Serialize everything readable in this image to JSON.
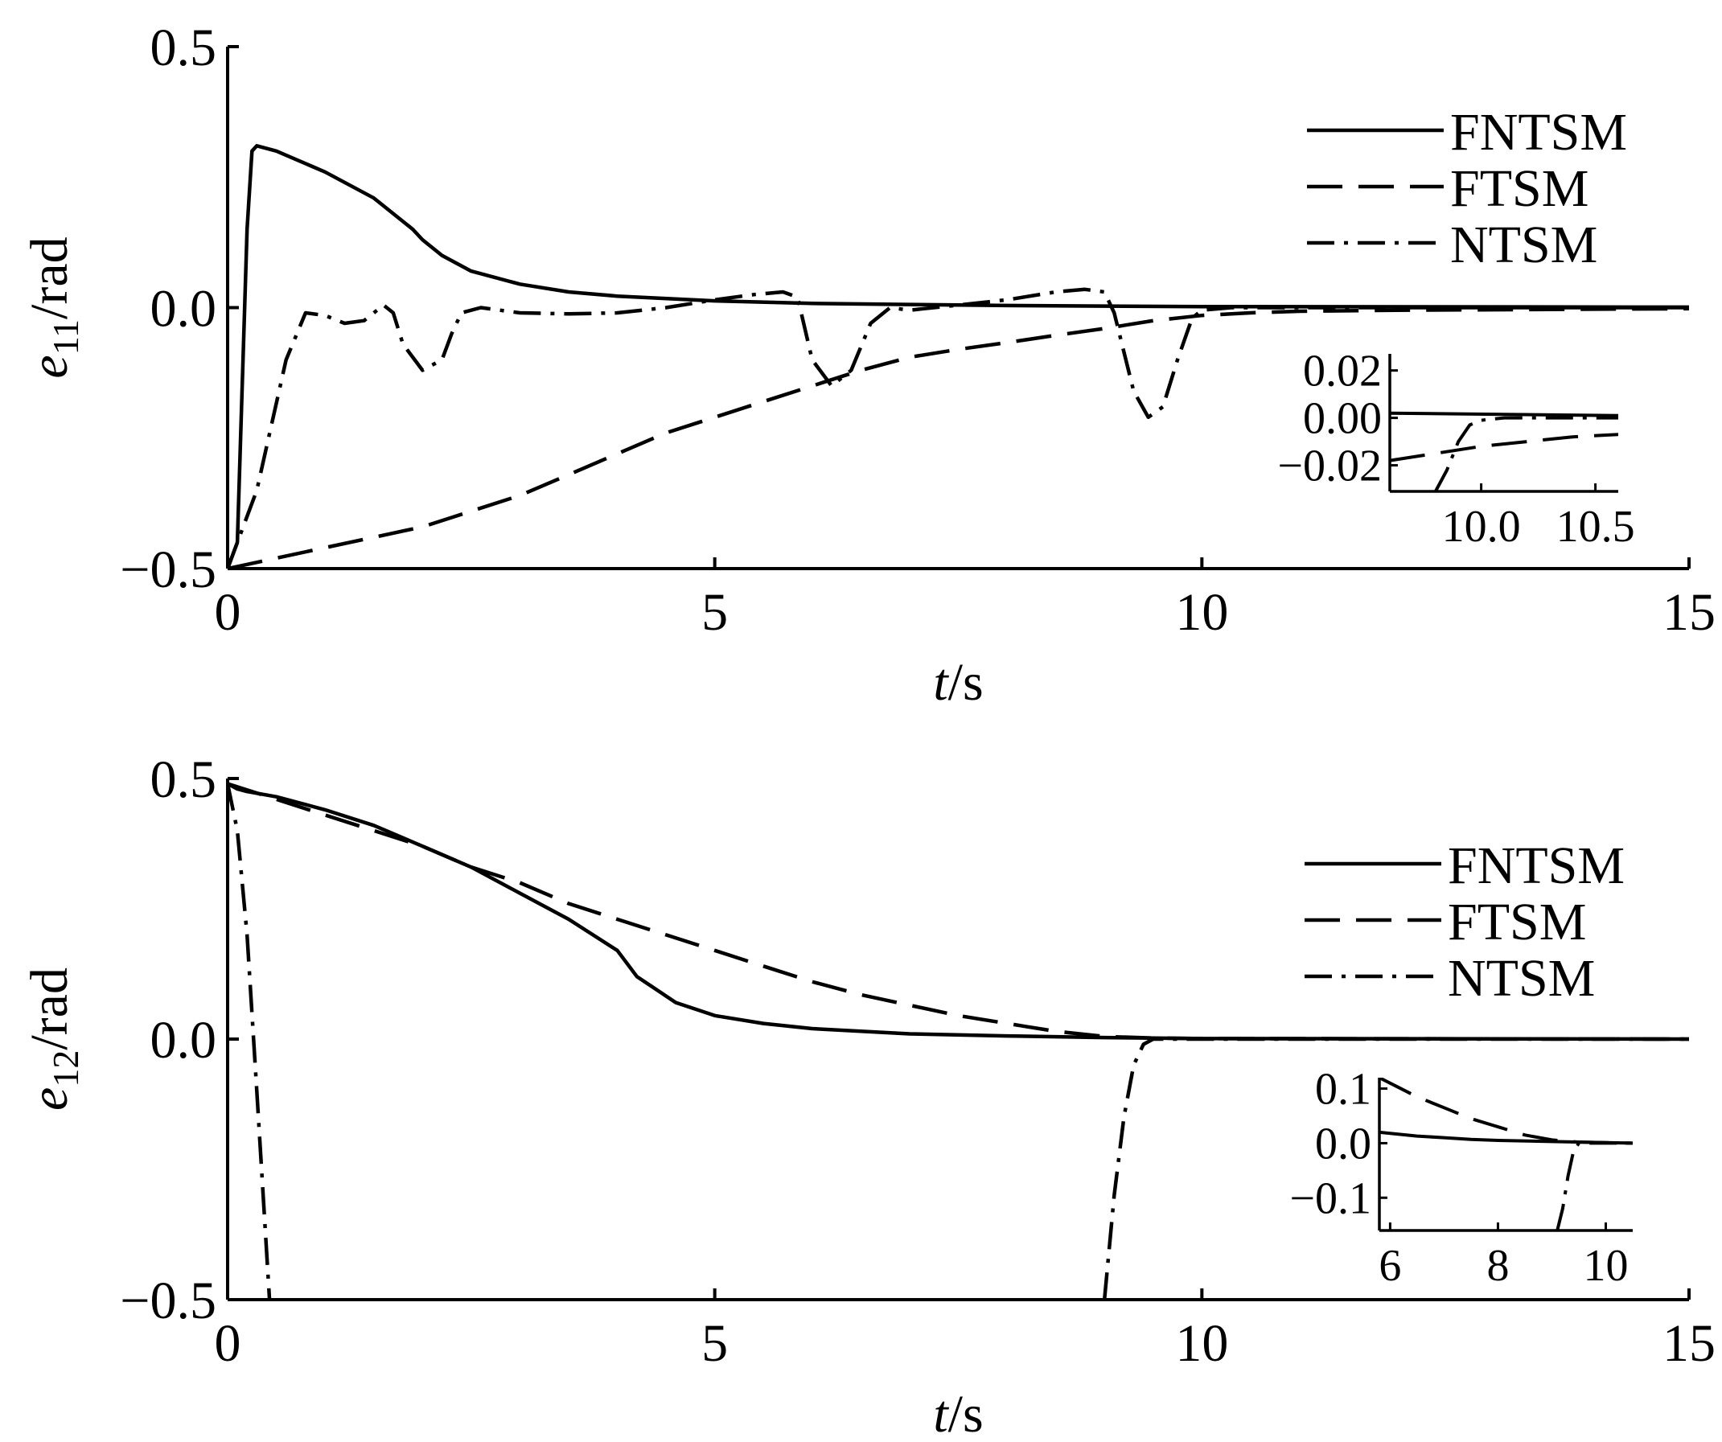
{
  "chart_data": [
    {
      "type": "line",
      "id": "top",
      "xlabel": {
        "italic": "t",
        "rest": "/s"
      },
      "ylabel": {
        "base": "e",
        "sub": "11",
        "rest": "/rad"
      },
      "xlim": [
        0,
        15
      ],
      "ylim": [
        -0.5,
        0.5
      ],
      "xticks": [
        0,
        5,
        10,
        15
      ],
      "xtick_labels": [
        "0",
        "5",
        "10",
        "15"
      ],
      "yticks": [
        -0.5,
        0.0,
        0.5
      ],
      "ytick_labels": [
        "−0.5",
        "0.0",
        "0.5"
      ],
      "legend_position": "top-right",
      "series": [
        {
          "name": "FNTSM",
          "style": "solid",
          "points": [
            [
              0,
              -0.5
            ],
            [
              0.1,
              -0.45
            ],
            [
              0.2,
              0.15
            ],
            [
              0.25,
              0.3
            ],
            [
              0.3,
              0.31
            ],
            [
              0.5,
              0.3
            ],
            [
              1,
              0.26
            ],
            [
              1.5,
              0.21
            ],
            [
              1.9,
              0.15
            ],
            [
              2,
              0.13
            ],
            [
              2.2,
              0.1
            ],
            [
              2.5,
              0.07
            ],
            [
              3,
              0.045
            ],
            [
              3.5,
              0.03
            ],
            [
              4,
              0.022
            ],
            [
              5,
              0.013
            ],
            [
              6,
              0.008
            ],
            [
              7,
              0.006
            ],
            [
              8,
              0.004
            ],
            [
              9,
              0.003
            ],
            [
              10,
              0.002
            ],
            [
              15,
              0.001
            ]
          ]
        },
        {
          "name": "FTSM",
          "style": "dashed",
          "points": [
            [
              0,
              -0.5
            ],
            [
              0.5,
              -0.48
            ],
            [
              1,
              -0.46
            ],
            [
              1.5,
              -0.44
            ],
            [
              2,
              -0.42
            ],
            [
              2.5,
              -0.39
            ],
            [
              3,
              -0.36
            ],
            [
              3.5,
              -0.32
            ],
            [
              4,
              -0.28
            ],
            [
              4.5,
              -0.24
            ],
            [
              5,
              -0.21
            ],
            [
              5.5,
              -0.18
            ],
            [
              6,
              -0.15
            ],
            [
              6.5,
              -0.12
            ],
            [
              7,
              -0.095
            ],
            [
              7.5,
              -0.08
            ],
            [
              8,
              -0.067
            ],
            [
              8.5,
              -0.053
            ],
            [
              9,
              -0.04
            ],
            [
              9.5,
              -0.025
            ],
            [
              10,
              -0.015
            ],
            [
              10.5,
              -0.01
            ],
            [
              11,
              -0.007
            ],
            [
              12,
              -0.005
            ],
            [
              13,
              -0.004
            ],
            [
              15,
              -0.002
            ]
          ]
        },
        {
          "name": "NTSM",
          "style": "dashdot",
          "points": [
            [
              0,
              -0.5
            ],
            [
              0.3,
              -0.35
            ],
            [
              0.6,
              -0.1
            ],
            [
              0.8,
              -0.01
            ],
            [
              1,
              -0.015
            ],
            [
              1.2,
              -0.03
            ],
            [
              1.4,
              -0.025
            ],
            [
              1.6,
              0.005
            ],
            [
              1.7,
              -0.01
            ],
            [
              1.8,
              -0.07
            ],
            [
              2,
              -0.12
            ],
            [
              2.2,
              -0.1
            ],
            [
              2.3,
              -0.05
            ],
            [
              2.4,
              -0.01
            ],
            [
              2.6,
              0
            ],
            [
              3,
              -0.01
            ],
            [
              3.5,
              -0.012
            ],
            [
              4,
              -0.01
            ],
            [
              4.5,
              0
            ],
            [
              5,
              0.015
            ],
            [
              5.4,
              0.025
            ],
            [
              5.7,
              0.03
            ],
            [
              5.85,
              0.02
            ],
            [
              6,
              -0.1
            ],
            [
              6.2,
              -0.15
            ],
            [
              6.4,
              -0.12
            ],
            [
              6.6,
              -0.03
            ],
            [
              6.8,
              0
            ],
            [
              7,
              -0.005
            ],
            [
              7.5,
              0.005
            ],
            [
              8,
              0.015
            ],
            [
              8.5,
              0.03
            ],
            [
              8.8,
              0.035
            ],
            [
              9,
              0.03
            ],
            [
              9.1,
              -0.01
            ],
            [
              9.3,
              -0.16
            ],
            [
              9.45,
              -0.21
            ],
            [
              9.6,
              -0.19
            ],
            [
              9.75,
              -0.1
            ],
            [
              9.9,
              -0.02
            ],
            [
              10,
              -0.005
            ],
            [
              10.3,
              0
            ],
            [
              12,
              0
            ],
            [
              15,
              0
            ]
          ]
        }
      ],
      "inset": {
        "xlim": [
          9.6,
          10.6
        ],
        "ylim": [
          -0.031,
          0.027
        ],
        "xticks": [
          10.0,
          10.5
        ],
        "xtick_labels": [
          "10.0",
          "10.5"
        ],
        "yticks": [
          -0.02,
          0.0,
          0.02
        ],
        "ytick_labels": [
          "−0.02",
          "0.00",
          "0.02"
        ],
        "series": [
          {
            "name": "FNTSM",
            "style": "solid",
            "points": [
              [
                9.6,
                0.002
              ],
              [
                10.6,
                0.001
              ]
            ]
          },
          {
            "name": "FTSM",
            "style": "dashed",
            "points": [
              [
                9.6,
                -0.018
              ],
              [
                9.8,
                -0.015
              ],
              [
                10.0,
                -0.012
              ],
              [
                10.2,
                -0.01
              ],
              [
                10.4,
                -0.008
              ],
              [
                10.6,
                -0.007
              ]
            ]
          },
          {
            "name": "NTSM",
            "style": "dashdot",
            "points": [
              [
                9.8,
                -0.031
              ],
              [
                9.85,
                -0.022
              ],
              [
                9.9,
                -0.01
              ],
              [
                9.95,
                -0.003
              ],
              [
                10.0,
                -0.001
              ],
              [
                10.1,
                0
              ],
              [
                10.6,
                0
              ]
            ]
          }
        ]
      }
    },
    {
      "type": "line",
      "id": "bottom",
      "xlabel": {
        "italic": "t",
        "rest": "/s"
      },
      "ylabel": {
        "base": "e",
        "sub": "12",
        "rest": "/rad"
      },
      "xlim": [
        0,
        15
      ],
      "ylim": [
        -0.5,
        0.5
      ],
      "xticks": [
        0,
        5,
        10,
        15
      ],
      "xtick_labels": [
        "0",
        "5",
        "10",
        "15"
      ],
      "yticks": [
        -0.5,
        0.0,
        0.5
      ],
      "ytick_labels": [
        "−0.5",
        "0.0",
        "0.5"
      ],
      "legend_position": "top-right",
      "series": [
        {
          "name": "FNTSM",
          "style": "solid",
          "points": [
            [
              0,
              0.49
            ],
            [
              0.1,
              0.48
            ],
            [
              0.2,
              0.475
            ],
            [
              0.5,
              0.465
            ],
            [
              1,
              0.44
            ],
            [
              1.5,
              0.41
            ],
            [
              2,
              0.37
            ],
            [
              2.5,
              0.33
            ],
            [
              3,
              0.28
            ],
            [
              3.5,
              0.23
            ],
            [
              4,
              0.17
            ],
            [
              4.2,
              0.12
            ],
            [
              4.4,
              0.095
            ],
            [
              4.6,
              0.07
            ],
            [
              5,
              0.045
            ],
            [
              5.5,
              0.03
            ],
            [
              6,
              0.02
            ],
            [
              7,
              0.01
            ],
            [
              8,
              0.006
            ],
            [
              9,
              0.003
            ],
            [
              10,
              0.001
            ],
            [
              15,
              0
            ]
          ]
        },
        {
          "name": "FTSM",
          "style": "dashed",
          "points": [
            [
              0,
              0.49
            ],
            [
              0.5,
              0.46
            ],
            [
              1,
              0.43
            ],
            [
              1.5,
              0.4
            ],
            [
              2,
              0.37
            ],
            [
              2.5,
              0.33
            ],
            [
              3,
              0.3
            ],
            [
              3.5,
              0.26
            ],
            [
              4,
              0.23
            ],
            [
              4.5,
              0.2
            ],
            [
              5,
              0.17
            ],
            [
              5.5,
              0.14
            ],
            [
              6,
              0.11
            ],
            [
              6.5,
              0.085
            ],
            [
              7,
              0.065
            ],
            [
              7.5,
              0.045
            ],
            [
              8,
              0.03
            ],
            [
              8.5,
              0.015
            ],
            [
              9,
              0.005
            ],
            [
              9.5,
              0.002
            ],
            [
              10,
              0.001
            ],
            [
              15,
              0
            ]
          ]
        },
        {
          "name": "NTSM",
          "style": "dashdot",
          "points": [
            [
              0,
              0.49
            ],
            [
              0.1,
              0.4
            ],
            [
              0.2,
              0.2
            ],
            [
              0.3,
              -0.1
            ],
            [
              0.43,
              -0.5
            ]
          ]
        },
        {
          "name": "NTSM",
          "style": "dashdot",
          "legend": false,
          "points": [
            [
              9.0,
              -0.5
            ],
            [
              9.1,
              -0.3
            ],
            [
              9.2,
              -0.15
            ],
            [
              9.3,
              -0.05
            ],
            [
              9.4,
              -0.01
            ],
            [
              9.5,
              0
            ],
            [
              10,
              0
            ],
            [
              15,
              0
            ]
          ]
        }
      ],
      "inset": {
        "xlim": [
          5.8,
          10.5
        ],
        "ylim": [
          -0.16,
          0.12
        ],
        "xticks": [
          6,
          8,
          10
        ],
        "xtick_labels": [
          "6",
          "8",
          "10"
        ],
        "yticks": [
          -0.1,
          0.0,
          0.1
        ],
        "ytick_labels": [
          "−0.1",
          "0.0",
          "0.1"
        ],
        "series": [
          {
            "name": "FNTSM",
            "style": "solid",
            "points": [
              [
                5.8,
                0.02
              ],
              [
                6.5,
                0.013
              ],
              [
                7,
                0.01
              ],
              [
                7.5,
                0.007
              ],
              [
                8,
                0.005
              ],
              [
                9,
                0.003
              ],
              [
                10,
                0.001
              ],
              [
                10.5,
                0
              ]
            ]
          },
          {
            "name": "FTSM",
            "style": "dashed",
            "points": [
              [
                5.8,
                0.12
              ],
              [
                6,
                0.11
              ],
              [
                6.5,
                0.085
              ],
              [
                7,
                0.065
              ],
              [
                7.5,
                0.045
              ],
              [
                8,
                0.03
              ],
              [
                8.5,
                0.015
              ],
              [
                9,
                0.006
              ],
              [
                9.5,
                0.002
              ],
              [
                10,
                0.001
              ],
              [
                10.5,
                0
              ]
            ]
          },
          {
            "name": "NTSM",
            "style": "dashdot",
            "points": [
              [
                9.1,
                -0.16
              ],
              [
                9.2,
                -0.12
              ],
              [
                9.3,
                -0.06
              ],
              [
                9.4,
                -0.015
              ],
              [
                9.5,
                0
              ],
              [
                10,
                0
              ],
              [
                10.5,
                0
              ]
            ]
          }
        ]
      }
    }
  ]
}
